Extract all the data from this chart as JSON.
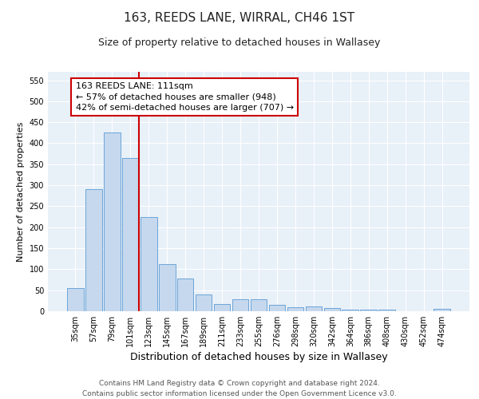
{
  "title": "163, REEDS LANE, WIRRAL, CH46 1ST",
  "subtitle": "Size of property relative to detached houses in Wallasey",
  "xlabel": "Distribution of detached houses by size in Wallasey",
  "ylabel": "Number of detached properties",
  "categories": [
    "35sqm",
    "57sqm",
    "79sqm",
    "101sqm",
    "123sqm",
    "145sqm",
    "167sqm",
    "189sqm",
    "211sqm",
    "233sqm",
    "255sqm",
    "276sqm",
    "298sqm",
    "320sqm",
    "342sqm",
    "364sqm",
    "386sqm",
    "408sqm",
    "430sqm",
    "452sqm",
    "474sqm"
  ],
  "values": [
    55,
    290,
    425,
    365,
    225,
    113,
    77,
    40,
    18,
    29,
    29,
    16,
    10,
    11,
    7,
    4,
    4,
    4,
    0,
    0,
    5
  ],
  "bar_color": "#c5d8ed",
  "bar_edge_color": "#5b9bd5",
  "vline_color": "#cc0000",
  "annotation_text": "163 REEDS LANE: 111sqm\n← 57% of detached houses are smaller (948)\n42% of semi-detached houses are larger (707) →",
  "annotation_box_color": "#ffffff",
  "annotation_box_edge": "#cc0000",
  "ylim": [
    0,
    570
  ],
  "yticks": [
    0,
    50,
    100,
    150,
    200,
    250,
    300,
    350,
    400,
    450,
    500,
    550
  ],
  "bg_color": "#e8f0f8",
  "grid_color": "#ffffff",
  "footer": "Contains HM Land Registry data © Crown copyright and database right 2024.\nContains public sector information licensed under the Open Government Licence v3.0.",
  "title_fontsize": 11,
  "subtitle_fontsize": 9,
  "xlabel_fontsize": 9,
  "ylabel_fontsize": 8,
  "tick_fontsize": 7,
  "annotation_fontsize": 8,
  "footer_fontsize": 6.5
}
